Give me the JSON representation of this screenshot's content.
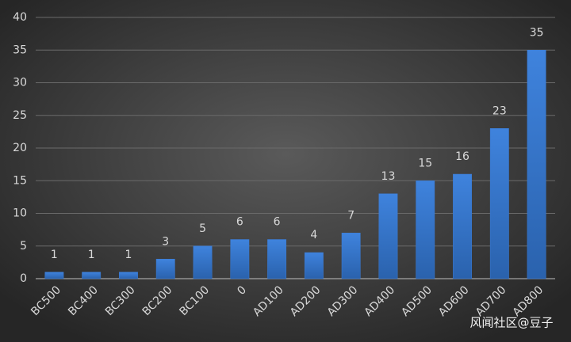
{
  "chart_data": {
    "type": "bar",
    "categories": [
      "BC500",
      "BC400",
      "BC300",
      "BC200",
      "BC100",
      "0",
      "AD100",
      "AD200",
      "AD300",
      "AD400",
      "AD500",
      "AD600",
      "AD700",
      "AD800"
    ],
    "values": [
      1,
      1,
      1,
      3,
      5,
      6,
      6,
      4,
      7,
      13,
      15,
      16,
      23,
      35
    ],
    "color": "#3b7bd4",
    "ylim": [
      0,
      40
    ],
    "yticks": [
      0,
      5,
      10,
      15,
      20,
      25,
      30,
      35,
      40
    ],
    "grid": true,
    "data_labels": true,
    "watermark": "风闻社区@豆子"
  }
}
